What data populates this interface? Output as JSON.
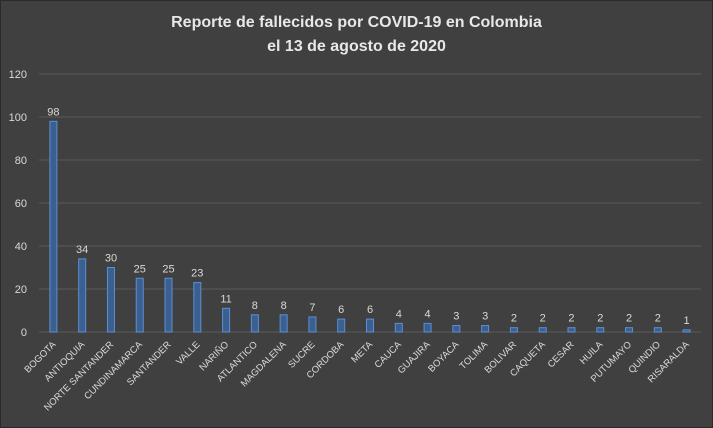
{
  "chart_data": {
    "type": "bar",
    "title_lines": [
      "Reporte de fallecidos por COVID-19 en Colombia",
      "el 13 de agosto de 2020"
    ],
    "xlabel": "",
    "ylabel": "",
    "categories": [
      "BOGOTA",
      "ANTIOQUIA",
      "NORTE SANTANDER",
      "CUNDINAMARCA",
      "SANTANDER",
      "VALLE",
      "NARIÑO",
      "ATLANTICO",
      "MAGDALENA",
      "SUCRE",
      "CORDOBA",
      "META",
      "CAUCA",
      "GUAJIRA",
      "BOYACA",
      "TOLIMA",
      "BOLIVAR",
      "CAQUETA",
      "CESAR",
      "HUILA",
      "PUTUMAYO",
      "QUINDIO",
      "RISARALDA"
    ],
    "values": [
      98,
      34,
      30,
      25,
      25,
      23,
      11,
      8,
      8,
      7,
      6,
      6,
      4,
      4,
      3,
      3,
      2,
      2,
      2,
      2,
      2,
      2,
      1
    ],
    "yticks": [
      0,
      20,
      40,
      60,
      80,
      100,
      120
    ],
    "ylim": [
      0,
      120
    ],
    "grid": true,
    "legend": "none",
    "colors": {
      "bar_fill": "#3b5f8f",
      "bar_stroke": "#5b8fd6",
      "background": "#404040",
      "grid": "#5a5a5a",
      "text": "#d9d9d9"
    }
  }
}
